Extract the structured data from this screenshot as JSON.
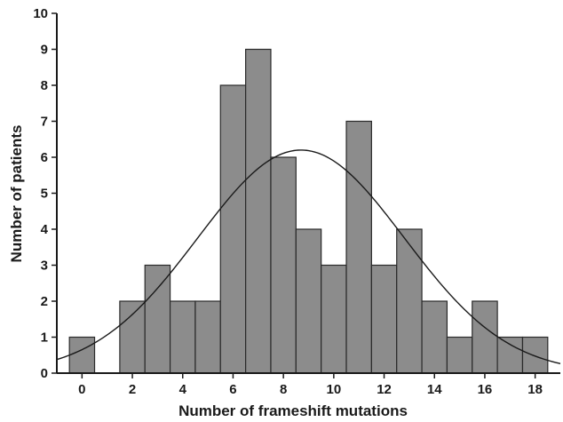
{
  "chart_data": {
    "type": "bar",
    "subtype": "histogram_with_normal_curve",
    "title": "",
    "xlabel": "Number of frameshift mutations",
    "ylabel": "Number of patients",
    "categories": [
      0,
      1,
      2,
      3,
      4,
      5,
      6,
      7,
      8,
      9,
      10,
      11,
      12,
      13,
      14,
      15,
      16,
      17,
      18
    ],
    "values": [
      1,
      0,
      2,
      3,
      2,
      2,
      8,
      9,
      6,
      4,
      3,
      7,
      3,
      4,
      2,
      1,
      2,
      1,
      1
    ],
    "xlim": [
      -1,
      19
    ],
    "ylim": [
      0,
      10
    ],
    "xticks": [
      0,
      2,
      4,
      6,
      8,
      10,
      12,
      14,
      16,
      18
    ],
    "yticks": [
      0,
      1,
      2,
      3,
      4,
      5,
      6,
      7,
      8,
      9,
      10
    ],
    "curve": {
      "type": "normal_fit",
      "mean": 8.7,
      "peak": 6.2,
      "sd": 4.1
    },
    "grid": false,
    "legend": "none",
    "colors": {
      "bar_fill": "#8c8c8c",
      "bar_stroke": "#2a2a2a",
      "curve": "#1a1a1a",
      "axis": "#1a1a1a"
    }
  }
}
